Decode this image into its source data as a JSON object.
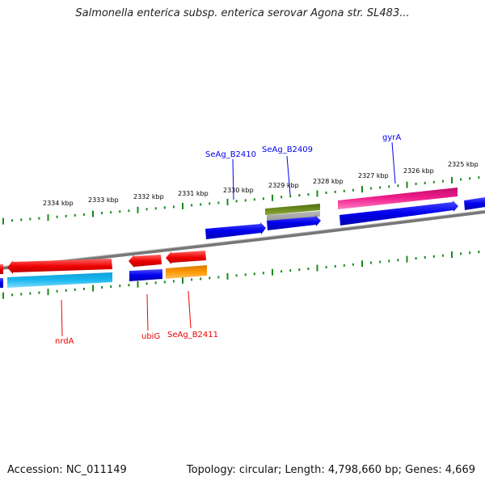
{
  "title": "Salmonella enterica subsp. enterica serovar Agona str. SL483...",
  "footer": {
    "accession": "Accession: NC_011149",
    "summary": "Topology: circular; Length: 4,798,660 bp; Genes: 4,669"
  },
  "ruler": {
    "unit": "kbp",
    "ticks": [
      "2334 kbp",
      "2333 kbp",
      "2332 kbp",
      "2331 kbp",
      "2330 kbp",
      "2329 kbp",
      "2328 kbp",
      "2327 kbp",
      "2326 kbp",
      "2325 kbp"
    ]
  },
  "genes": {
    "forward": [
      {
        "label": "SeAg_B2410",
        "color": "#0000ee"
      },
      {
        "label": "SeAg_B2409",
        "color": "#0000ee"
      },
      {
        "label": "gyrA",
        "color": "#0000ee"
      }
    ],
    "reverse": [
      {
        "label": "nrdA",
        "color": "#ee0000"
      },
      {
        "label": "ubiG",
        "color": "#ee0000"
      },
      {
        "label": "SeAg_B2411",
        "color": "#ee0000"
      }
    ]
  },
  "colors": {
    "forward_cds": "#0000ee",
    "reverse_cds": "#ee0000",
    "forward_feature": "#ee1a8a",
    "forward_feature_alt": "#6b8e23",
    "reverse_feature": "#1ab8ee",
    "reverse_feature_alt": "#ff9900",
    "ticks": "#1a8a1a",
    "backbone": "#888888"
  }
}
